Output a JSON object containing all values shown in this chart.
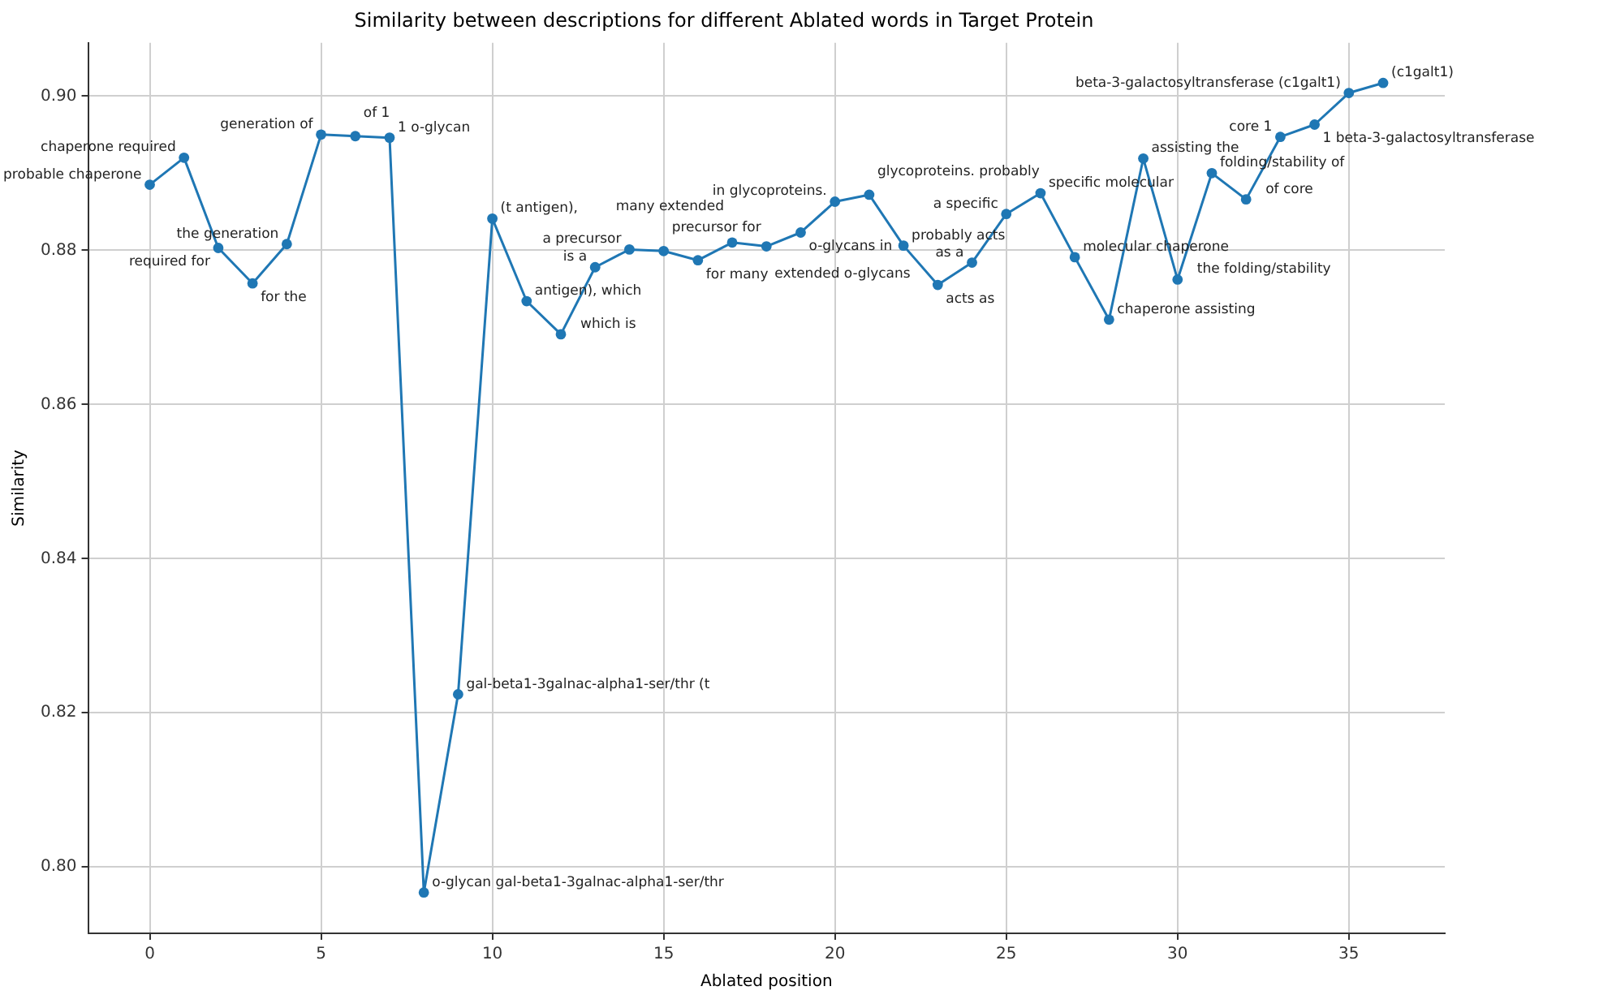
{
  "chart_data": {
    "type": "line",
    "title": "Similarity between descriptions for different Ablated words in Target Protein",
    "xlabel": "Ablated position",
    "ylabel": "Similarity",
    "x": [
      0,
      1,
      2,
      3,
      4,
      5,
      6,
      7,
      8,
      9,
      10,
      11,
      12,
      13,
      14,
      15,
      16,
      17,
      18,
      19,
      20,
      21,
      22,
      23,
      24,
      25,
      26,
      27,
      28,
      29,
      30,
      31,
      32,
      33,
      34,
      35,
      36
    ],
    "series": [
      {
        "color": "#1f77b4",
        "values": [
          0.8885,
          0.892,
          0.8803,
          0.8757,
          0.8808,
          0.895,
          0.8948,
          0.8946,
          0.7967,
          0.8224,
          0.8841,
          0.8734,
          0.8691,
          0.8778,
          0.8801,
          0.8799,
          0.8787,
          0.881,
          0.8805,
          0.8823,
          0.8863,
          0.8872,
          0.8806,
          0.8755,
          0.8784,
          0.8847,
          0.8874,
          0.8791,
          0.871,
          0.8919,
          0.8762,
          0.89,
          0.8866,
          0.8947,
          0.8963,
          0.9004,
          0.9017
        ]
      }
    ],
    "xlim": [
      -1.8,
      37.8
    ],
    "xticks": [
      0,
      5,
      10,
      15,
      20,
      25,
      30,
      35
    ],
    "ylim": [
      0.7914,
      0.9069
    ],
    "yticks": [
      {
        "value": 0.8,
        "label": "0.80"
      },
      {
        "value": 0.82,
        "label": "0.82"
      },
      {
        "value": 0.84,
        "label": "0.84"
      },
      {
        "value": 0.86,
        "label": "0.86"
      },
      {
        "value": 0.88,
        "label": "0.88"
      },
      {
        "value": 0.9,
        "label": "0.90"
      }
    ],
    "grid": true,
    "marker": "circle",
    "line_style": "solid",
    "legend": false,
    "annotations": [
      {
        "text": "probable chaperone",
        "x": 0,
        "y": 0.8885
      },
      {
        "text": "chaperone required",
        "x": 1,
        "y": 0.892
      },
      {
        "text": "required for",
        "x": 2,
        "y": 0.8803
      },
      {
        "text": "for the",
        "x": 3,
        "y": 0.8757
      },
      {
        "text": "the generation",
        "x": 4,
        "y": 0.8808
      },
      {
        "text": "generation of",
        "x": 5,
        "y": 0.895
      },
      {
        "text": "of 1",
        "x": 6,
        "y": 0.8948
      },
      {
        "text": "1 o-glycan",
        "x": 7,
        "y": 0.8946
      },
      {
        "text": "o-glycan gal-beta1-3galnac-alpha1-ser/thr",
        "x": 8,
        "y": 0.7967
      },
      {
        "text": "gal-beta1-3galnac-alpha1-ser/thr (t",
        "x": 9,
        "y": 0.8224
      },
      {
        "text": "(t antigen),",
        "x": 10,
        "y": 0.8841
      },
      {
        "text": "antigen), which",
        "x": 11,
        "y": 0.8734
      },
      {
        "text": "which is",
        "x": 12,
        "y": 0.8691
      },
      {
        "text": "is a",
        "x": 13,
        "y": 0.8778
      },
      {
        "text": "a precursor",
        "x": 14,
        "y": 0.8801
      },
      {
        "text": "precursor for",
        "x": 15,
        "y": 0.8799
      },
      {
        "text": "for many",
        "x": 16,
        "y": 0.8787
      },
      {
        "text": "many extended",
        "x": 17,
        "y": 0.881
      },
      {
        "text": "extended o-glycans",
        "x": 18,
        "y": 0.8805
      },
      {
        "text": "o-glycans in",
        "x": 19,
        "y": 0.8823
      },
      {
        "text": "in glycoproteins.",
        "x": 20,
        "y": 0.8863
      },
      {
        "text": "glycoproteins. probably",
        "x": 21,
        "y": 0.8872
      },
      {
        "text": "probably acts",
        "x": 22,
        "y": 0.8806
      },
      {
        "text": "acts as",
        "x": 23,
        "y": 0.8755
      },
      {
        "text": "as a",
        "x": 24,
        "y": 0.8784
      },
      {
        "text": "a specific",
        "x": 25,
        "y": 0.8847
      },
      {
        "text": "specific molecular",
        "x": 26,
        "y": 0.8874
      },
      {
        "text": "molecular chaperone",
        "x": 27,
        "y": 0.8791
      },
      {
        "text": "chaperone assisting",
        "x": 28,
        "y": 0.871
      },
      {
        "text": "assisting the",
        "x": 29,
        "y": 0.8919
      },
      {
        "text": "the folding/stability",
        "x": 30,
        "y": 0.8762
      },
      {
        "text": "folding/stability of",
        "x": 31,
        "y": 0.89
      },
      {
        "text": "of core",
        "x": 32,
        "y": 0.8866
      },
      {
        "text": "core 1",
        "x": 33,
        "y": 0.8947
      },
      {
        "text": "1 beta-3-galactosyltransferase",
        "x": 34,
        "y": 0.8963
      },
      {
        "text": "beta-3-galactosyltransferase (c1galt1)",
        "x": 35,
        "y": 0.9004
      },
      {
        "text": "(c1galt1)",
        "x": 36,
        "y": 0.9017
      }
    ]
  }
}
